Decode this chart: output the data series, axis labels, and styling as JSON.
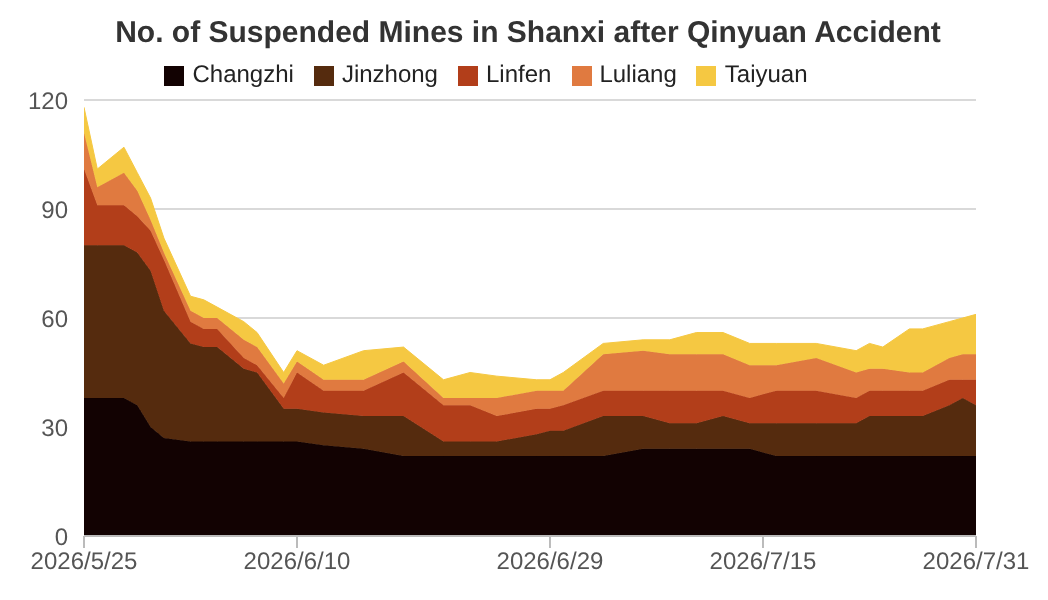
{
  "chart_data": {
    "type": "area",
    "title": "No. of Suspended Mines in Shanxi after Qinyuan Accident",
    "stacked": true,
    "legend": "top",
    "grid": "y",
    "x": [
      "2026-05-25",
      "2026-05-26",
      "2026-05-28",
      "2026-05-29",
      "2026-05-30",
      "2026-05-31",
      "2026-06-02",
      "2026-06-03",
      "2026-06-04",
      "2026-06-06",
      "2026-06-07",
      "2026-06-09",
      "2026-06-10",
      "2026-06-12",
      "2026-06-15",
      "2026-06-18",
      "2026-06-21",
      "2026-06-23",
      "2026-06-25",
      "2026-06-28",
      "2026-06-29",
      "2026-06-30",
      "2026-07-03",
      "2026-07-06",
      "2026-07-08",
      "2026-07-10",
      "2026-07-12",
      "2026-07-14",
      "2026-07-16",
      "2026-07-19",
      "2026-07-22",
      "2026-07-23",
      "2026-07-24",
      "2026-07-26",
      "2026-07-27",
      "2026-07-29",
      "2026-07-30",
      "2026-07-31"
    ],
    "series": [
      {
        "name": "Changzhi",
        "color": "#120202",
        "values": [
          38,
          38,
          38,
          36,
          30,
          27,
          26,
          26,
          26,
          26,
          26,
          26,
          26,
          25,
          24,
          22,
          22,
          22,
          22,
          22,
          22,
          22,
          22,
          24,
          24,
          24,
          24,
          24,
          22,
          22,
          22,
          22,
          22,
          22,
          22,
          22,
          22,
          22
        ]
      },
      {
        "name": "Jinzhong",
        "color": "#552b0e",
        "values": [
          42,
          42,
          42,
          42,
          43,
          35,
          27,
          26,
          26,
          20,
          19,
          9,
          9,
          9,
          9,
          11,
          4,
          4,
          4,
          6,
          7,
          7,
          11,
          9,
          7,
          7,
          9,
          7,
          9,
          9,
          9,
          11,
          11,
          11,
          11,
          14,
          16,
          14
        ]
      },
      {
        "name": "Linfen",
        "color": "#b23e1a",
        "values": [
          21,
          11,
          11,
          10,
          11,
          14,
          6,
          5,
          5,
          3,
          2,
          3,
          10,
          6,
          7,
          12,
          10,
          10,
          7,
          7,
          6,
          7,
          7,
          7,
          9,
          9,
          7,
          7,
          9,
          9,
          7,
          7,
          7,
          7,
          7,
          7,
          5,
          7
        ]
      },
      {
        "name": "Luliang",
        "color": "#e07a40",
        "values": [
          10,
          5,
          9,
          7,
          3,
          2,
          3,
          3,
          3,
          5,
          5,
          4,
          3,
          3,
          3,
          3,
          2,
          2,
          5,
          5,
          5,
          4,
          10,
          11,
          10,
          10,
          10,
          9,
          7,
          9,
          7,
          6,
          6,
          5,
          5,
          6,
          7,
          7
        ]
      },
      {
        "name": "Taiyuan",
        "color": "#f5c842",
        "values": [
          7,
          5,
          7,
          5,
          6,
          4,
          4,
          5,
          3,
          5,
          4,
          3,
          3,
          4,
          8,
          4,
          5,
          7,
          6,
          3,
          3,
          5,
          3,
          3,
          4,
          6,
          6,
          6,
          6,
          4,
          6,
          7,
          6,
          12,
          12,
          10,
          10,
          11
        ]
      }
    ],
    "xlim": [
      "2026-05-25",
      "2026-07-31"
    ],
    "xticks": [
      {
        "value": "2026-05-25",
        "label": "2026/5/25"
      },
      {
        "value": "2026-06-10",
        "label": "2026/6/10"
      },
      {
        "value": "2026-06-29",
        "label": "2026/6/29"
      },
      {
        "value": "2026-07-15",
        "label": "2026/7/15"
      },
      {
        "value": "2026-07-31",
        "label": "2026/7/31"
      }
    ],
    "ylim": [
      0,
      120
    ],
    "yticks": [
      0,
      30,
      60,
      90,
      120
    ]
  }
}
